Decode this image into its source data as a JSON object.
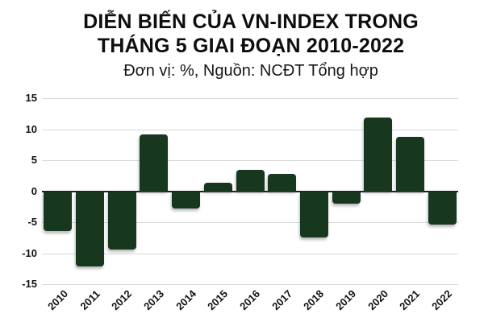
{
  "page": {
    "background": "#ffffff"
  },
  "header": {
    "title_line1": "DIỄN BIẾN CỦA VN-INDEX TRONG",
    "title_line2": "THÁNG 5 GIAI ĐOẠN 2010-2022",
    "subtitle": "Đơn vị: %, Nguồn: NCĐT Tổng hợp"
  },
  "chart_data": {
    "type": "bar",
    "title": "DIỄN BIẾN CỦA VN-INDEX TRONG THÁNG 5 GIAI ĐOẠN 2010-2022",
    "subtitle": "Đơn vị: %, Nguồn: NCĐT Tổng hợp",
    "unit": "%",
    "source": "NCĐT Tổng hợp",
    "categories": [
      "2010",
      "2011",
      "2012",
      "2013",
      "2014",
      "2015",
      "2016",
      "2017",
      "2018",
      "2019",
      "2020",
      "2021",
      "2022"
    ],
    "values": [
      -6.4,
      -12.2,
      -9.4,
      9.2,
      -2.8,
      1.3,
      3.4,
      2.8,
      -7.5,
      -2.0,
      11.9,
      8.8,
      -5.4
    ],
    "ylim": [
      -15,
      15
    ],
    "yticks": [
      15,
      10,
      5,
      0,
      -5,
      -10,
      -15
    ],
    "grid": true,
    "legend": false,
    "xlabel": "",
    "ylabel": "",
    "bar_color": "#17371e",
    "grid_color": "#d8d8d8",
    "zero_line_color": "#1f1f1f",
    "label_color": "#111111"
  }
}
